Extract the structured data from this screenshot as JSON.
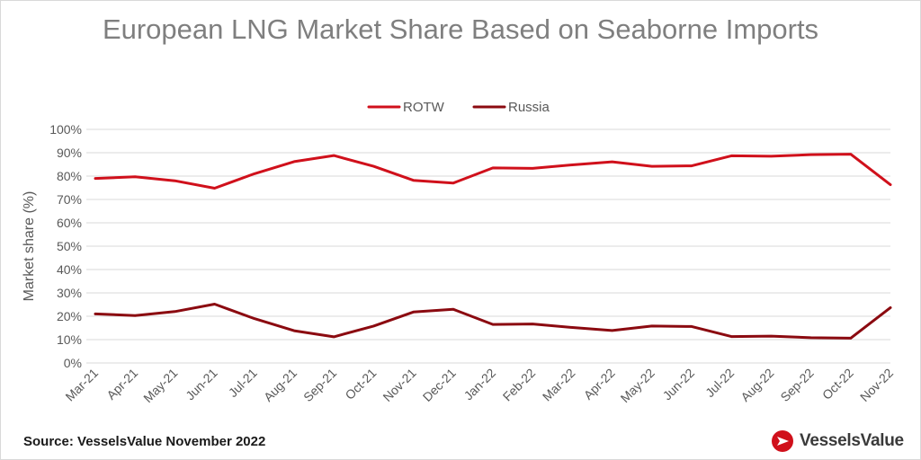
{
  "chart_data": {
    "type": "line",
    "title": "European LNG Market Share Based on Seaborne Imports",
    "xlabel": "",
    "ylabel": "Market share (%)",
    "ylim": [
      0,
      100
    ],
    "y_ticks": [
      "0%",
      "10%",
      "20%",
      "30%",
      "40%",
      "50%",
      "60%",
      "70%",
      "80%",
      "90%",
      "100%"
    ],
    "y_tick_values": [
      0,
      10,
      20,
      30,
      40,
      50,
      60,
      70,
      80,
      90,
      100
    ],
    "grid": true,
    "legend_position": "top-center",
    "categories": [
      "Mar-21",
      "Apr-21",
      "May-21",
      "Jun-21",
      "Jul-21",
      "Aug-21",
      "Sep-21",
      "Oct-21",
      "Nov-21",
      "Dec-21",
      "Jan-22",
      "Feb-22",
      "Mar-22",
      "Apr-22",
      "May-22",
      "Jun-22",
      "Jul-22",
      "Aug-22",
      "Sep-22",
      "Oct-22",
      "Nov-22"
    ],
    "series": [
      {
        "name": "ROTW",
        "color": "#d0101b",
        "values": [
          79,
          79.7,
          78,
          74.8,
          81,
          86.2,
          88.8,
          84.2,
          78.2,
          77,
          83.5,
          83.3,
          84.8,
          86.1,
          84.2,
          84.4,
          88.7,
          88.5,
          89.2,
          89.4,
          76.3
        ]
      },
      {
        "name": "Russia",
        "color": "#8b0a10",
        "values": [
          21,
          20.3,
          22,
          25.2,
          19,
          13.8,
          11.2,
          15.8,
          21.8,
          23,
          16.5,
          16.7,
          15.2,
          13.9,
          15.8,
          15.6,
          11.3,
          11.5,
          10.8,
          10.6,
          23.7
        ]
      }
    ]
  },
  "footer": {
    "source": "Source: VesselsValue November 2022",
    "brand": "VesselsValue"
  },
  "colors": {
    "title": "#7f7f7f",
    "grid": "#d9d9d9",
    "brand_accent": "#d0101b"
  }
}
